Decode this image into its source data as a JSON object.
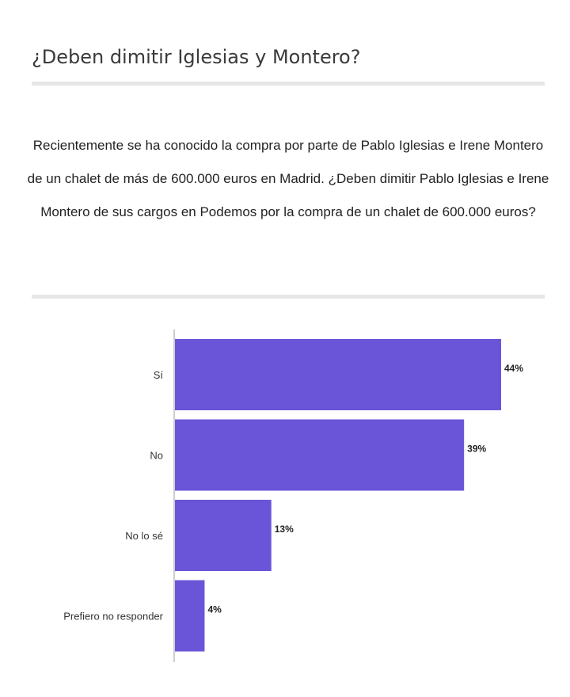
{
  "survey": {
    "title": "¿Deben dimitir Iglesias y Montero?",
    "question": "Recientemente se ha conocido la compra por parte de Pablo Iglesias e Irene Montero de un chalet de más de 600.000 euros en Madrid. ¿Deben dimitir Pablo Iglesias e Irene Montero de sus cargos en Podemos por la compra de un chalet de 600.000 euros?"
  },
  "chart_data": {
    "type": "bar",
    "orientation": "horizontal",
    "categories": [
      "Sí",
      "No",
      "No lo sé",
      "Prefiero no responder"
    ],
    "values": [
      44,
      39,
      13,
      4
    ],
    "value_labels": [
      "44%",
      "39%",
      "13%",
      "4%"
    ],
    "unit": "%",
    "bar_color": "#6a55d9",
    "xlim": [
      0,
      44
    ],
    "grid": false
  }
}
